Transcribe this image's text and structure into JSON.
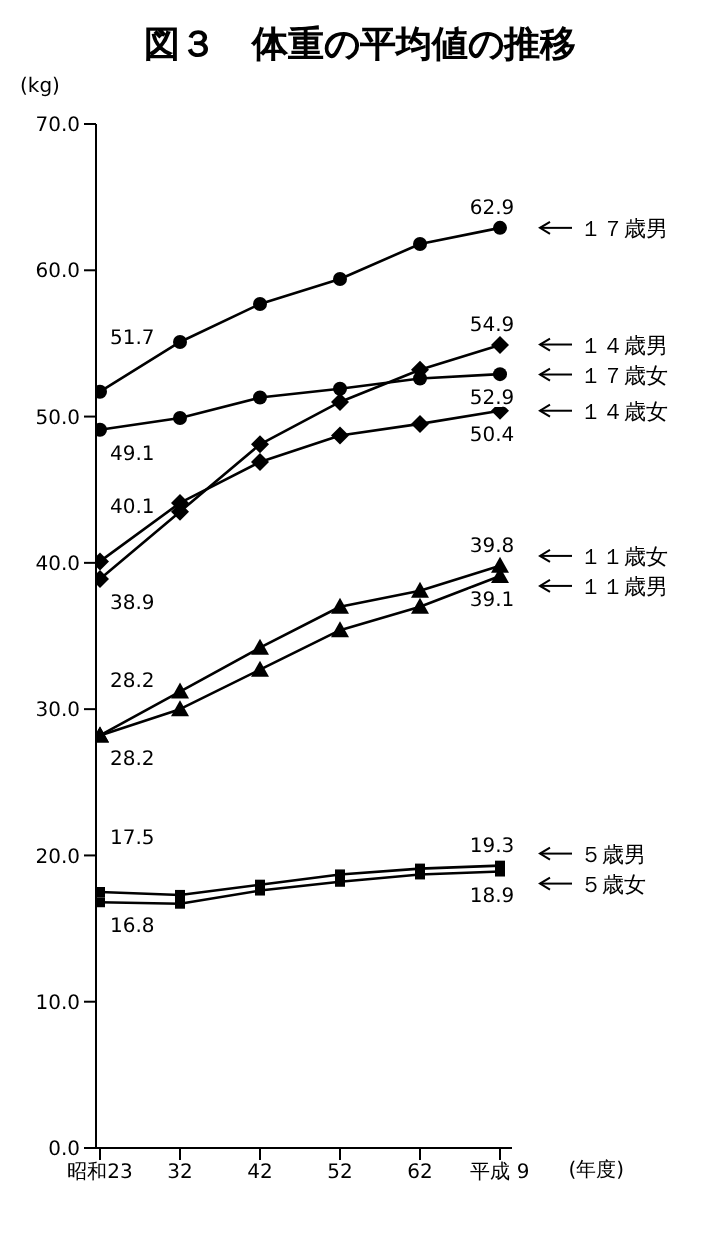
{
  "chart_data": {
    "type": "line",
    "title": "図３　体重の平均値の推移",
    "ylabel": "(kg)",
    "xlabel": "(年度)",
    "categories": [
      "昭和23",
      "32",
      "42",
      "52",
      "62",
      "平成 9"
    ],
    "ylim": [
      0,
      70
    ],
    "yticks": [
      {
        "value": 0,
        "label": "0.0"
      },
      {
        "value": 10,
        "label": "10.0"
      },
      {
        "value": 20,
        "label": "20.0"
      },
      {
        "value": 30,
        "label": "30.0"
      },
      {
        "value": 40,
        "label": "40.0"
      },
      {
        "value": 50,
        "label": "50.0"
      },
      {
        "value": 60,
        "label": "60.0"
      },
      {
        "value": 70,
        "label": "70.0"
      }
    ],
    "grid": false,
    "legend": "right",
    "series": [
      {
        "name": "１７歳男",
        "color": "#000000",
        "marker": "circle",
        "values": [
          51.7,
          55.1,
          57.7,
          59.4,
          61.8,
          62.9
        ],
        "value_labels": [
          "51.7",
          null,
          null,
          null,
          null,
          "62.9"
        ]
      },
      {
        "name": "１４歳男",
        "color": "#000000",
        "marker": "diamond",
        "values": [
          38.9,
          43.5,
          48.1,
          51.0,
          53.2,
          54.9
        ],
        "value_labels": [
          "38.9",
          null,
          null,
          null,
          null,
          "54.9"
        ]
      },
      {
        "name": "１７歳女",
        "color": "#000000",
        "marker": "circle",
        "values": [
          49.1,
          49.9,
          51.3,
          51.9,
          52.6,
          52.9
        ],
        "value_labels": [
          "49.1",
          null,
          null,
          null,
          null,
          "52.9"
        ]
      },
      {
        "name": "１４歳女",
        "color": "#000000",
        "marker": "diamond",
        "values": [
          40.1,
          44.1,
          46.9,
          48.7,
          49.5,
          50.4
        ],
        "value_labels": [
          "40.1",
          null,
          null,
          null,
          null,
          "50.4"
        ]
      },
      {
        "name": "１１歳女",
        "color": "#000000",
        "marker": "triangle",
        "values": [
          28.2,
          31.2,
          34.2,
          37.0,
          38.1,
          39.8
        ],
        "value_labels": [
          "28.2",
          null,
          null,
          null,
          null,
          "39.8"
        ]
      },
      {
        "name": "１１歳男",
        "color": "#000000",
        "marker": "triangle",
        "values": [
          28.2,
          30.0,
          32.7,
          35.4,
          37.0,
          39.1
        ],
        "value_labels": [
          "28.2",
          null,
          null,
          null,
          null,
          "39.1"
        ]
      },
      {
        "name": "５歳男",
        "color": "#000000",
        "marker": "square",
        "values": [
          17.5,
          17.3,
          18.0,
          18.7,
          19.1,
          19.3
        ],
        "value_labels": [
          "17.5",
          null,
          null,
          null,
          null,
          "19.3"
        ]
      },
      {
        "name": "５歳女",
        "color": "#000000",
        "marker": "square",
        "values": [
          16.8,
          16.7,
          17.6,
          18.2,
          18.7,
          18.9
        ],
        "value_labels": [
          "16.8",
          null,
          null,
          null,
          null,
          "18.9"
        ]
      }
    ]
  }
}
